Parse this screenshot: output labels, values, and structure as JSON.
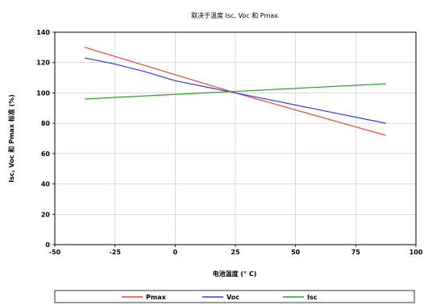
{
  "chart_data": {
    "type": "line",
    "title": "取决于温度 Isc, Voc 和 Pmax",
    "xlabel": "电池温度 (° C)",
    "ylabel": "Isc, Voc 和 Pmax 标准 (%)",
    "xlim": [
      -50,
      100
    ],
    "ylim": [
      0,
      140
    ],
    "xticks": [
      -50,
      -25,
      0,
      25,
      50,
      75,
      100
    ],
    "yticks": [
      0,
      20,
      40,
      60,
      80,
      100,
      120,
      140
    ],
    "xtick_labels": [
      "-50",
      "-25",
      "0",
      "25",
      "50",
      "75",
      "100"
    ],
    "ytick_labels": [
      "0",
      "20",
      "40",
      "60",
      "80",
      "100",
      "120",
      "140"
    ],
    "grid": true,
    "legend_position": "bottom",
    "series": [
      {
        "name": "Pmax",
        "color": "#e8453c",
        "x": [
          -37.5,
          25,
          87.5
        ],
        "y": [
          130,
          100,
          72
        ]
      },
      {
        "name": "Voc",
        "color": "#3a3ae0",
        "x": [
          -37.5,
          -25,
          -12.5,
          0,
          12.5,
          25,
          37.5,
          50,
          62.5,
          75,
          87.5
        ],
        "y": [
          123,
          119,
          114,
          108,
          104,
          100,
          96,
          92,
          88,
          84,
          80
        ]
      },
      {
        "name": "Isc",
        "color": "#2aa02a",
        "x": [
          -37.5,
          25,
          87.5
        ],
        "y": [
          96,
          101,
          106
        ]
      }
    ]
  }
}
